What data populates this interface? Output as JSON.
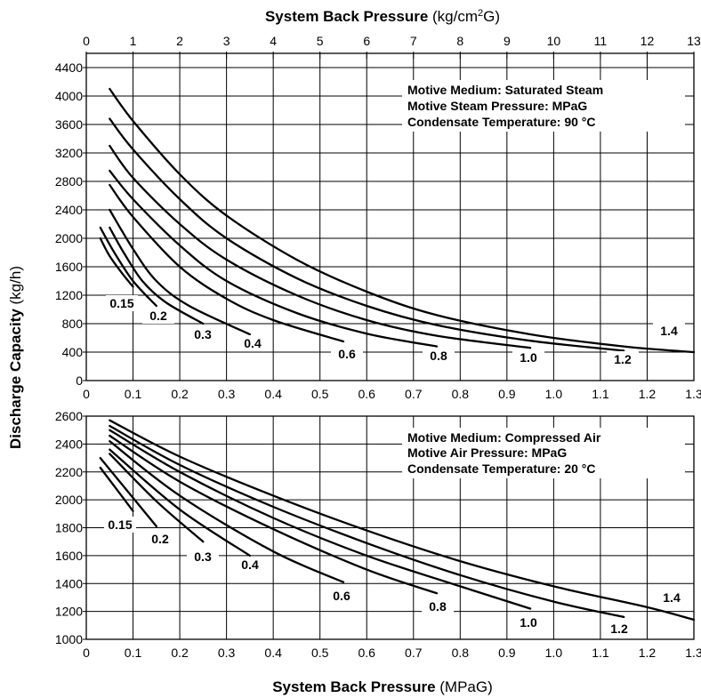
{
  "top_axis": {
    "title_bold": "System Back Pressure",
    "title_unit_pre": " (kg/cm",
    "title_unit_sup": "2",
    "title_unit_post": "G)",
    "range": [
      0,
      13
    ],
    "ticks": [
      "0",
      "1",
      "2",
      "3",
      "4",
      "5",
      "6",
      "7",
      "8",
      "9",
      "10",
      "11",
      "12",
      "13"
    ]
  },
  "bottom_axis": {
    "title_bold": "System Back Pressure",
    "title_unit": " (MPaG)"
  },
  "y_axis": {
    "title_bold": "Discharge Capacity",
    "title_unit": " (kg/h)"
  },
  "chart_data": [
    {
      "type": "line",
      "xlabel": "System Back Pressure (MPaG)",
      "ylabel": "Discharge Capacity (kg/h)",
      "xlim": [
        0,
        1.3
      ],
      "ylim": [
        0,
        4400
      ],
      "x_ticks": [
        "0",
        "0.1",
        "0.2",
        "0.3",
        "0.4",
        "0.5",
        "0.6",
        "0.7",
        "0.8",
        "0.9",
        "1.0",
        "1.1",
        "1.2",
        "1.3"
      ],
      "y_ticks": [
        "0",
        "400",
        "800",
        "1200",
        "1600",
        "2000",
        "2400",
        "2800",
        "3200",
        "3600",
        "4000",
        "4400"
      ],
      "grid": true,
      "annotations": [
        "Motive Medium: Saturated Steam",
        "Motive Steam Pressure: MPaG",
        "Condensate Temperature: 90 °C"
      ],
      "series": [
        {
          "name": "0.15",
          "x": [
            0.03,
            0.05,
            0.08,
            0.1
          ],
          "y": [
            2000,
            1750,
            1480,
            1320
          ]
        },
        {
          "name": "0.2",
          "x": [
            0.03,
            0.06,
            0.1,
            0.15
          ],
          "y": [
            2150,
            1800,
            1400,
            1050
          ]
        },
        {
          "name": "0.3",
          "x": [
            0.05,
            0.08,
            0.12,
            0.17,
            0.25
          ],
          "y": [
            2150,
            1800,
            1400,
            1100,
            800
          ]
        },
        {
          "name": "0.4",
          "x": [
            0.05,
            0.1,
            0.15,
            0.22,
            0.35
          ],
          "y": [
            2400,
            1850,
            1400,
            1050,
            650
          ]
        },
        {
          "name": "0.6",
          "x": [
            0.05,
            0.1,
            0.2,
            0.3,
            0.4,
            0.55
          ],
          "y": [
            2750,
            2300,
            1600,
            1150,
            850,
            550
          ]
        },
        {
          "name": "0.8",
          "x": [
            0.05,
            0.1,
            0.2,
            0.3,
            0.45,
            0.6,
            0.75
          ],
          "y": [
            2950,
            2550,
            1900,
            1400,
            950,
            660,
            480
          ]
        },
        {
          "name": "1.0",
          "x": [
            0.05,
            0.1,
            0.2,
            0.3,
            0.45,
            0.6,
            0.75,
            0.95
          ],
          "y": [
            3300,
            2850,
            2200,
            1700,
            1200,
            850,
            630,
            460
          ]
        },
        {
          "name": "1.2",
          "x": [
            0.05,
            0.1,
            0.2,
            0.3,
            0.45,
            0.6,
            0.75,
            0.95,
            1.15
          ],
          "y": [
            3680,
            3250,
            2550,
            2000,
            1440,
            1050,
            780,
            560,
            420
          ]
        },
        {
          "name": "1.4",
          "x": [
            0.05,
            0.1,
            0.2,
            0.3,
            0.45,
            0.6,
            0.75,
            0.95,
            1.15,
            1.3
          ],
          "y": [
            4100,
            3650,
            2900,
            2320,
            1700,
            1250,
            920,
            650,
            480,
            400
          ]
        }
      ]
    },
    {
      "type": "line",
      "xlabel": "System Back Pressure (MPaG)",
      "ylabel": "Discharge Capacity (kg/h)",
      "xlim": [
        0,
        1.3
      ],
      "ylim": [
        1000,
        2600
      ],
      "x_ticks": [
        "0",
        "0.1",
        "0.2",
        "0.3",
        "0.4",
        "0.5",
        "0.6",
        "0.7",
        "0.8",
        "0.9",
        "1.0",
        "1.1",
        "1.2",
        "1.3"
      ],
      "y_ticks": [
        "1000",
        "1200",
        "1400",
        "1600",
        "1800",
        "2000",
        "2200",
        "2400",
        "2600"
      ],
      "grid": true,
      "annotations": [
        "Motive Medium: Compressed Air",
        "Motive Air Pressure: MPaG",
        "Condensate Temperature: 20 °C"
      ],
      "series": [
        {
          "name": "0.15",
          "x": [
            0.03,
            0.1
          ],
          "y": [
            2230,
            1920
          ]
        },
        {
          "name": "0.2",
          "x": [
            0.03,
            0.15
          ],
          "y": [
            2300,
            1810
          ]
        },
        {
          "name": "0.3",
          "x": [
            0.05,
            0.15,
            0.25
          ],
          "y": [
            2330,
            1990,
            1700
          ]
        },
        {
          "name": "0.4",
          "x": [
            0.05,
            0.2,
            0.35
          ],
          "y": [
            2360,
            1930,
            1600
          ]
        },
        {
          "name": "0.6",
          "x": [
            0.05,
            0.2,
            0.4,
            0.55
          ],
          "y": [
            2420,
            2030,
            1630,
            1410
          ]
        },
        {
          "name": "0.8",
          "x": [
            0.05,
            0.2,
            0.4,
            0.6,
            0.75
          ],
          "y": [
            2460,
            2130,
            1790,
            1500,
            1330
          ]
        },
        {
          "name": "1.0",
          "x": [
            0.05,
            0.2,
            0.4,
            0.6,
            0.8,
            0.95
          ],
          "y": [
            2500,
            2200,
            1870,
            1600,
            1380,
            1220
          ]
        },
        {
          "name": "1.2",
          "x": [
            0.05,
            0.2,
            0.4,
            0.6,
            0.8,
            1.0,
            1.15
          ],
          "y": [
            2530,
            2250,
            1950,
            1690,
            1460,
            1270,
            1160
          ]
        },
        {
          "name": "1.4",
          "x": [
            0.05,
            0.2,
            0.4,
            0.6,
            0.8,
            1.0,
            1.2,
            1.3
          ],
          "y": [
            2570,
            2310,
            2030,
            1780,
            1560,
            1380,
            1230,
            1140
          ]
        }
      ]
    }
  ]
}
